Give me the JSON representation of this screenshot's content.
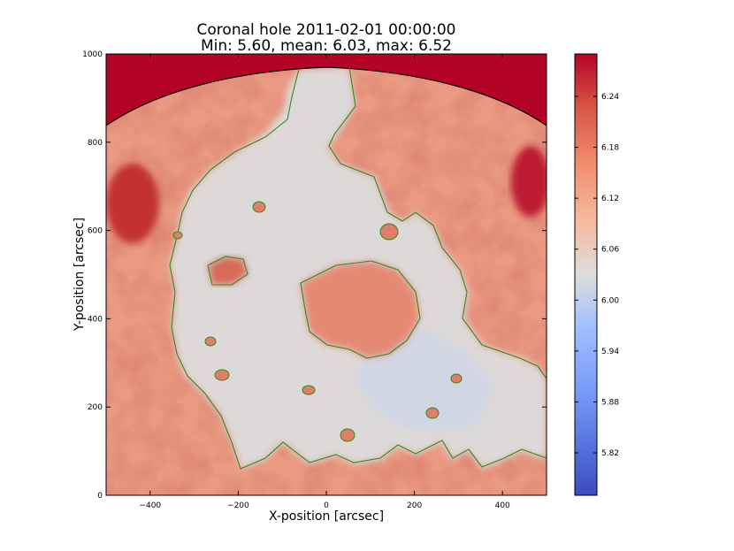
{
  "chart_data": {
    "type": "heatmap",
    "title": "Coronal hole 2011-02-01 00:00:00",
    "subtitle": "Min: 5.60, mean: 6.03, max: 6.52",
    "xlabel": "X-position [arcsec]",
    "ylabel": "Y-position [arcsec]",
    "xlim": [
      -500,
      500
    ],
    "ylim": [
      0,
      1000
    ],
    "x_ticks": [
      {
        "value": -400,
        "label": "−400"
      },
      {
        "value": -200,
        "label": "−200"
      },
      {
        "value": 0,
        "label": "0"
      },
      {
        "value": 200,
        "label": "200"
      },
      {
        "value": 400,
        "label": "400"
      }
    ],
    "y_ticks": [
      {
        "value": 0,
        "label": "0"
      },
      {
        "value": 200,
        "label": "200"
      },
      {
        "value": 400,
        "label": "400"
      },
      {
        "value": 600,
        "label": "600"
      },
      {
        "value": 800,
        "label": "800"
      },
      {
        "value": 1000,
        "label": "1000"
      }
    ],
    "colorbar": {
      "colormap": "coolwarm",
      "range": [
        5.77,
        6.29
      ],
      "ticks": [
        {
          "value": 5.82,
          "label": "5.82"
        },
        {
          "value": 5.88,
          "label": "5.88"
        },
        {
          "value": 5.94,
          "label": "5.94"
        },
        {
          "value": 6.0,
          "label": "6.00"
        },
        {
          "value": 6.06,
          "label": "6.06"
        },
        {
          "value": 6.12,
          "label": "6.12"
        },
        {
          "value": 6.18,
          "label": "6.18"
        },
        {
          "value": 6.24,
          "label": "6.24"
        }
      ]
    },
    "limb_radius_arcsec": 975,
    "contour_color": "#2e8b22",
    "limb_color": "#000000",
    "colors": {
      "low": "#3b4cc0",
      "mid": "#dddddd",
      "high": "#b40426"
    },
    "regions": [
      {
        "name": "coronal-hole",
        "level": 6.01
      },
      {
        "name": "quiet-sun",
        "level": 6.14
      },
      {
        "name": "bright-limb",
        "level": 6.27
      }
    ]
  }
}
